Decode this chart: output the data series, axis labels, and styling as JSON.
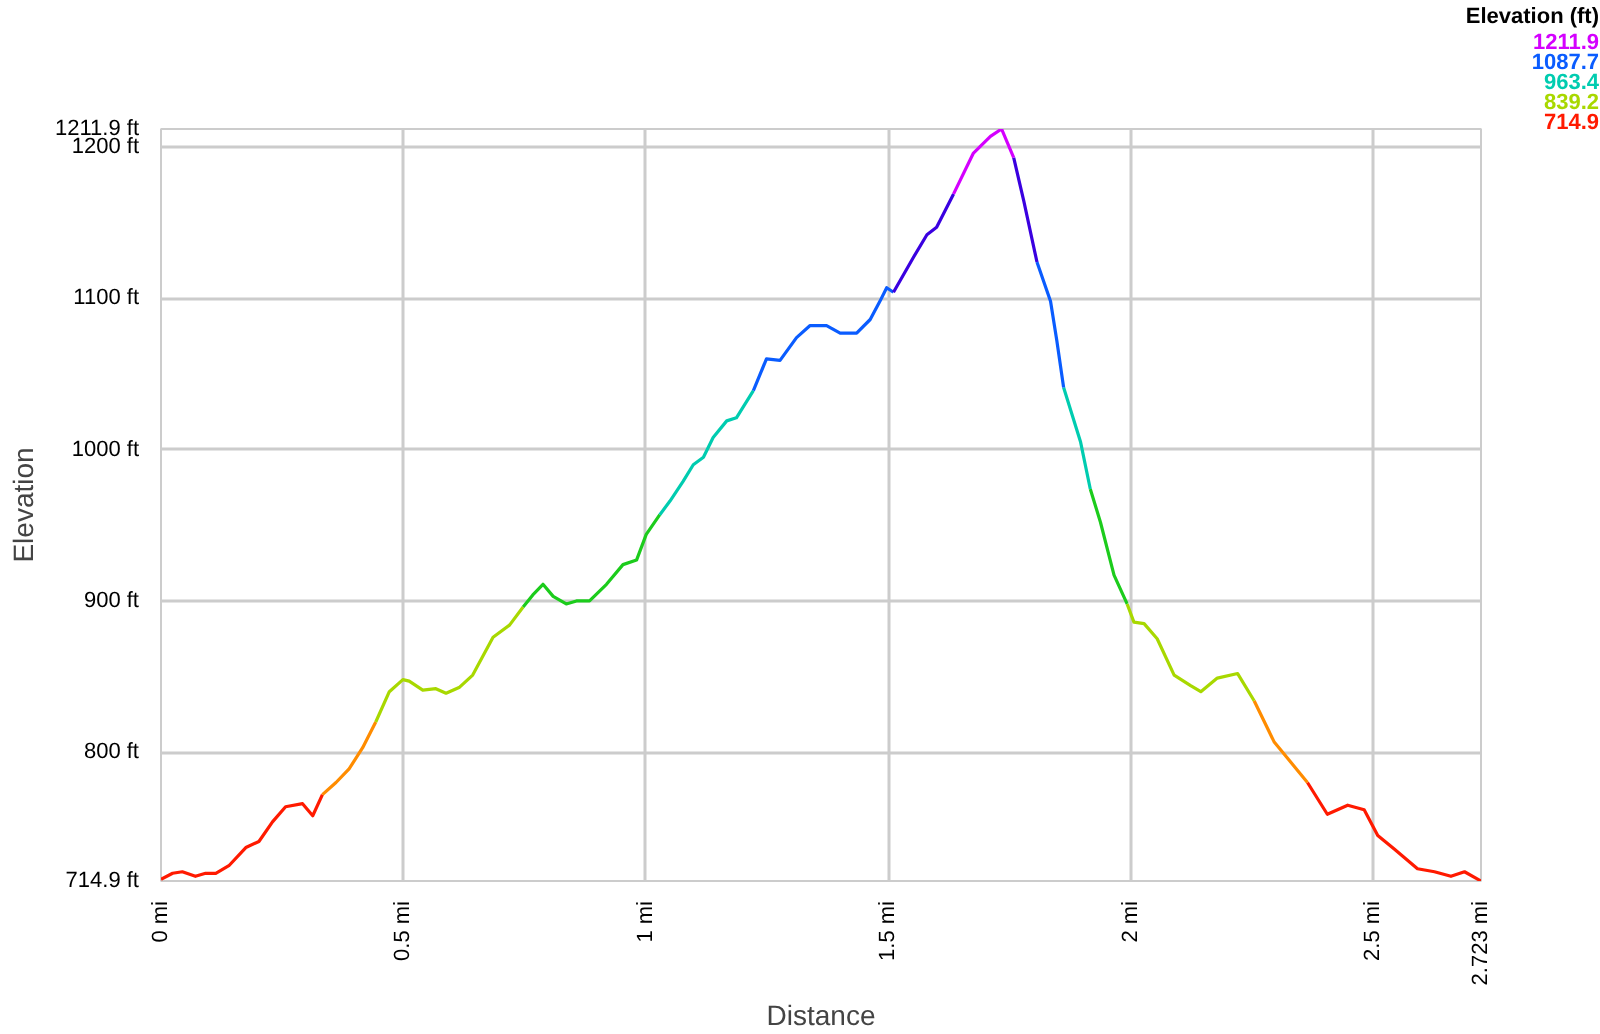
{
  "chart_data": {
    "type": "line",
    "xlabel": "Distance",
    "ylabel": "Elevation",
    "annotations": [
      "Elevation (ft)",
      "1211.9",
      "1087.7",
      "963.4",
      "839.2",
      "714.9"
    ],
    "xlim": [
      0,
      2.723
    ],
    "ylim": [
      714.9,
      1211.9
    ],
    "xticks": [
      {
        "value": 0,
        "label": "0 mi"
      },
      {
        "value": 0.5,
        "label": "0.5 mi"
      },
      {
        "value": 1,
        "label": "1 mi"
      },
      {
        "value": 1.5,
        "label": "1.5 mi"
      },
      {
        "value": 2,
        "label": "2 mi"
      },
      {
        "value": 2.5,
        "label": "2.5 mi"
      },
      {
        "value": 2.723,
        "label": "2.723 mi"
      }
    ],
    "yticks": [
      {
        "value": 714.9,
        "label": "714.9 ft"
      },
      {
        "value": 800,
        "label": "800 ft"
      },
      {
        "value": 900,
        "label": "900 ft"
      },
      {
        "value": 1000,
        "label": "1000 ft"
      },
      {
        "value": 1100,
        "label": "1100 ft"
      },
      {
        "value": 1200,
        "label": "1200 ft"
      },
      {
        "value": 1211.9,
        "label": "1211.9 ft"
      }
    ],
    "grid": true,
    "x": [
      0,
      0.024,
      0.044,
      0.071,
      0.092,
      0.113,
      0.14,
      0.175,
      0.202,
      0.23,
      0.257,
      0.292,
      0.313,
      0.333,
      0.361,
      0.388,
      0.416,
      0.443,
      0.471,
      0.499,
      0.512,
      0.54,
      0.567,
      0.588,
      0.616,
      0.643,
      0.685,
      0.719,
      0.747,
      0.767,
      0.788,
      0.809,
      0.836,
      0.857,
      0.884,
      0.919,
      0.953,
      0.981,
      1.001,
      1.029,
      1.05,
      1.077,
      1.098,
      1.119,
      1.139,
      1.167,
      1.187,
      1.222,
      1.249,
      1.277,
      1.311,
      1.339,
      1.373,
      1.401,
      1.435,
      1.463,
      1.483,
      1.497,
      1.511,
      1.552,
      1.58,
      1.6,
      1.635,
      1.676,
      1.711,
      1.734,
      1.759,
      1.78,
      1.807,
      1.835,
      1.848,
      1.862,
      1.897,
      1.917,
      1.938,
      1.966,
      1.993,
      2.007,
      2.028,
      2.055,
      2.09,
      2.124,
      2.145,
      2.179,
      2.221,
      2.255,
      2.296,
      2.324,
      2.365,
      2.406,
      2.448,
      2.482,
      2.51,
      2.544,
      2.592,
      2.627,
      2.661,
      2.689,
      2.723
    ],
    "series": [
      {
        "color": "#ff1a00",
        "values": [
          716,
          720,
          721,
          718,
          720,
          720,
          725,
          737,
          741,
          754,
          764,
          766,
          758,
          772,
          null,
          null,
          null,
          null,
          null,
          null,
          null,
          null,
          null,
          null,
          null,
          null,
          null,
          null,
          null,
          null,
          null,
          null,
          null,
          null,
          null,
          null,
          null,
          null,
          null,
          null,
          null,
          null,
          null,
          null,
          null,
          null,
          null,
          null,
          null,
          null,
          null,
          null,
          null,
          null,
          null,
          null,
          null,
          null,
          null,
          null,
          null,
          null,
          null,
          null,
          null,
          null,
          null,
          null,
          null,
          null,
          null,
          null,
          null,
          null,
          null,
          null,
          null,
          null,
          null,
          null,
          null,
          null,
          null,
          null,
          null,
          null,
          null,
          null,
          780,
          759,
          765,
          762,
          745,
          736,
          723,
          721,
          718,
          721,
          714.9
        ]
      },
      {
        "color": "#ff8c00",
        "values": [
          null,
          null,
          null,
          null,
          null,
          null,
          null,
          null,
          null,
          null,
          null,
          null,
          null,
          772,
          780,
          789,
          803,
          820,
          null,
          null,
          null,
          null,
          null,
          null,
          null,
          null,
          null,
          null,
          null,
          null,
          null,
          null,
          null,
          null,
          null,
          null,
          null,
          null,
          null,
          null,
          null,
          null,
          null,
          null,
          null,
          null,
          null,
          null,
          null,
          null,
          null,
          null,
          null,
          null,
          null,
          null,
          null,
          null,
          null,
          null,
          null,
          null,
          null,
          null,
          null,
          null,
          null,
          null,
          null,
          null,
          null,
          null,
          null,
          null,
          null,
          null,
          null,
          null,
          null,
          null,
          null,
          null,
          null,
          null,
          null,
          834,
          807,
          796,
          780,
          null,
          null,
          null,
          null,
          null,
          null,
          null,
          null,
          null,
          null
        ]
      },
      {
        "color": "#a8d800",
        "values": [
          null,
          null,
          null,
          null,
          null,
          null,
          null,
          null,
          null,
          null,
          null,
          null,
          null,
          null,
          null,
          null,
          null,
          820,
          840,
          848,
          847,
          841,
          842,
          839,
          843,
          851,
          876,
          884,
          896,
          null,
          null,
          null,
          null,
          null,
          null,
          null,
          null,
          null,
          null,
          null,
          null,
          null,
          null,
          null,
          null,
          null,
          null,
          null,
          null,
          null,
          null,
          null,
          null,
          null,
          null,
          null,
          null,
          null,
          null,
          null,
          null,
          null,
          null,
          null,
          null,
          null,
          null,
          null,
          null,
          null,
          null,
          null,
          null,
          null,
          null,
          null,
          898,
          886,
          885,
          875,
          851,
          844,
          840,
          849,
          852,
          834,
          null,
          null,
          null,
          null,
          null,
          null,
          null,
          null,
          null,
          null,
          null,
          null,
          null
        ]
      },
      {
        "color": "#1ccc1c",
        "values": [
          null,
          null,
          null,
          null,
          null,
          null,
          null,
          null,
          null,
          null,
          null,
          null,
          null,
          null,
          null,
          null,
          null,
          null,
          null,
          null,
          null,
          null,
          null,
          null,
          null,
          null,
          null,
          null,
          896,
          904,
          911,
          903,
          898,
          900,
          900,
          911,
          924,
          927,
          944,
          957,
          null,
          null,
          null,
          null,
          null,
          null,
          null,
          null,
          null,
          null,
          null,
          null,
          null,
          null,
          null,
          null,
          null,
          null,
          null,
          null,
          null,
          null,
          null,
          null,
          null,
          null,
          null,
          null,
          null,
          null,
          null,
          null,
          null,
          974,
          952,
          917,
          898,
          null,
          null,
          null,
          null,
          null,
          null,
          null,
          null,
          null,
          null,
          null,
          null,
          null,
          null,
          null,
          null,
          null,
          null,
          null,
          null,
          null,
          null
        ]
      },
      {
        "color": "#00ccb0",
        "values": [
          null,
          null,
          null,
          null,
          null,
          null,
          null,
          null,
          null,
          null,
          null,
          null,
          null,
          null,
          null,
          null,
          null,
          null,
          null,
          null,
          null,
          null,
          null,
          null,
          null,
          null,
          null,
          null,
          null,
          null,
          null,
          null,
          null,
          null,
          null,
          null,
          null,
          null,
          null,
          957,
          966,
          979,
          990,
          995,
          1008,
          1019,
          1021,
          1039,
          null,
          null,
          null,
          null,
          null,
          null,
          null,
          null,
          null,
          null,
          null,
          null,
          null,
          null,
          null,
          null,
          null,
          null,
          null,
          null,
          null,
          null,
          null,
          1041,
          1005,
          974,
          null,
          null,
          null,
          null,
          null,
          null,
          null,
          null,
          null,
          null,
          null,
          null,
          null,
          null,
          null,
          null,
          null,
          null,
          null,
          null,
          null,
          null,
          null,
          null,
          null
        ]
      },
      {
        "color": "#0a5cff",
        "values": [
          null,
          null,
          null,
          null,
          null,
          null,
          null,
          null,
          null,
          null,
          null,
          null,
          null,
          null,
          null,
          null,
          null,
          null,
          null,
          null,
          null,
          null,
          null,
          null,
          null,
          null,
          null,
          null,
          null,
          null,
          null,
          null,
          null,
          null,
          null,
          null,
          null,
          null,
          null,
          null,
          null,
          null,
          null,
          null,
          null,
          null,
          null,
          1039,
          1060,
          1059,
          1074,
          1082,
          1082,
          1077,
          1077,
          1086,
          1098,
          1107,
          1104,
          null,
          null,
          null,
          null,
          null,
          null,
          null,
          null,
          null,
          1124,
          1098,
          1072,
          1041,
          null,
          null,
          null,
          null,
          null,
          null,
          null,
          null,
          null,
          null,
          null,
          null,
          null,
          null,
          null,
          null,
          null,
          null,
          null,
          null,
          null,
          null,
          null,
          null,
          null,
          null,
          null
        ]
      },
      {
        "color": "#3a00e0",
        "values": [
          null,
          null,
          null,
          null,
          null,
          null,
          null,
          null,
          null,
          null,
          null,
          null,
          null,
          null,
          null,
          null,
          null,
          null,
          null,
          null,
          null,
          null,
          null,
          null,
          null,
          null,
          null,
          null,
          null,
          null,
          null,
          null,
          null,
          null,
          null,
          null,
          null,
          null,
          null,
          null,
          null,
          null,
          null,
          null,
          null,
          null,
          null,
          null,
          null,
          null,
          null,
          null,
          null,
          null,
          null,
          null,
          null,
          null,
          1104,
          1127,
          1142,
          1147,
          1169,
          null,
          null,
          null,
          1193,
          1164,
          1124,
          null,
          null,
          null,
          null,
          null,
          null,
          null,
          null,
          null,
          null,
          null,
          null,
          null,
          null,
          null,
          null,
          null,
          null,
          null,
          null,
          null,
          null,
          null,
          null,
          null,
          null,
          null,
          null,
          null,
          null
        ]
      },
      {
        "color": "#d400ff",
        "values": [
          null,
          null,
          null,
          null,
          null,
          null,
          null,
          null,
          null,
          null,
          null,
          null,
          null,
          null,
          null,
          null,
          null,
          null,
          null,
          null,
          null,
          null,
          null,
          null,
          null,
          null,
          null,
          null,
          null,
          null,
          null,
          null,
          null,
          null,
          null,
          null,
          null,
          null,
          null,
          null,
          null,
          null,
          null,
          null,
          null,
          null,
          null,
          null,
          null,
          null,
          null,
          null,
          null,
          null,
          null,
          null,
          null,
          null,
          null,
          null,
          null,
          null,
          1169,
          1196,
          1207,
          1211.9,
          1193,
          null,
          null,
          null,
          null,
          null,
          null,
          null,
          null,
          null,
          null,
          null,
          null,
          null,
          null,
          null,
          null,
          null,
          null,
          null,
          null,
          null,
          null,
          null,
          null,
          null,
          null,
          null,
          null,
          null,
          null,
          null,
          null
        ]
      }
    ]
  }
}
